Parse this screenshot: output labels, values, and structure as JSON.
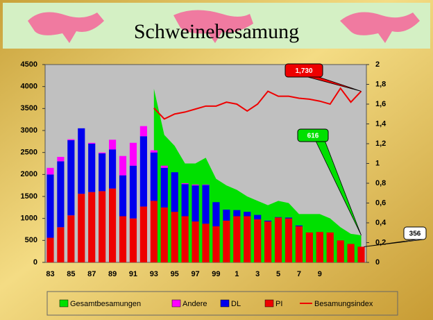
{
  "chart_data": {
    "type": "bar",
    "title": "Schweinebesamung",
    "categories": [
      "83",
      null,
      "85",
      null,
      "87",
      null,
      "89",
      null,
      "91",
      null,
      "93",
      null,
      "95",
      null,
      "97",
      null,
      "99",
      null,
      "1",
      null,
      "3",
      null,
      "5",
      null,
      "7",
      null,
      "9",
      null,
      null,
      null,
      null
    ],
    "series": [
      {
        "name": "Gesamtbesamungen",
        "type": "area",
        "color": "#00e000",
        "values": [
          null,
          null,
          null,
          null,
          null,
          null,
          null,
          null,
          null,
          null,
          3950,
          2900,
          2650,
          2250,
          2250,
          2380,
          1900,
          1750,
          1650,
          1500,
          1400,
          1300,
          1400,
          1350,
          1100,
          1100,
          1100,
          1000,
          800,
          650,
          616
        ]
      },
      {
        "name": "Andere",
        "type": "bar",
        "color": "#ff00ff",
        "values": [
          150,
          100,
          20,
          0,
          20,
          20,
          220,
          440,
          520,
          230,
          50,
          50,
          0,
          20,
          20,
          10,
          0,
          0,
          0,
          0,
          0,
          0,
          0,
          0,
          0,
          0,
          0,
          0,
          0,
          0,
          0
        ]
      },
      {
        "name": "DL",
        "type": "bar",
        "color": "#0000ee",
        "values": [
          1440,
          1500,
          1710,
          1490,
          1100,
          860,
          890,
          930,
          1200,
          1600,
          1100,
          900,
          900,
          730,
          820,
          880,
          550,
          250,
          140,
          100,
          100,
          20,
          10,
          20,
          20,
          0,
          0,
          0,
          0,
          0,
          0
        ]
      },
      {
        "name": "PI",
        "type": "bar",
        "color": "#ee0000",
        "values": [
          560,
          800,
          1070,
          1560,
          1600,
          1620,
          1680,
          1050,
          1000,
          1270,
          1400,
          1250,
          1150,
          1050,
          930,
          880,
          820,
          950,
          1050,
          1050,
          980,
          930,
          1020,
          1000,
          820,
          680,
          690,
          680,
          500,
          420,
          356
        ]
      },
      {
        "name": "Besamungsindex",
        "type": "line",
        "color": "#ee0000",
        "axis": "y2",
        "values": [
          null,
          null,
          null,
          null,
          null,
          null,
          null,
          null,
          null,
          null,
          1.56,
          1.45,
          1.5,
          1.52,
          1.55,
          1.58,
          1.58,
          1.62,
          1.6,
          1.53,
          1.6,
          1.73,
          1.68,
          1.68,
          1.66,
          1.65,
          1.63,
          1.6,
          1.76,
          1.62,
          1.73
        ]
      }
    ],
    "ylim": [
      0,
      4500
    ],
    "yticks": [
      0,
      500,
      1000,
      1500,
      2000,
      2500,
      3000,
      3500,
      4000,
      4500
    ],
    "y2lim": [
      0,
      2
    ],
    "y2ticks": [
      0,
      {
        "value": 0.2,
        "label": "0,2"
      },
      {
        "value": 0.4,
        "label": "0,4"
      },
      {
        "value": 0.6,
        "label": "0,6"
      },
      {
        "value": 0.8,
        "label": "0,8"
      },
      1,
      {
        "value": 1.2,
        "label": "1,2"
      },
      {
        "value": 1.4,
        "label": "1,4"
      },
      {
        "value": 1.6,
        "label": "1,6"
      },
      {
        "value": 1.8,
        "label": "1,8"
      },
      2
    ],
    "annotations": [
      "1,730",
      "616",
      "356"
    ],
    "plot_background": "#c0c0c0"
  }
}
